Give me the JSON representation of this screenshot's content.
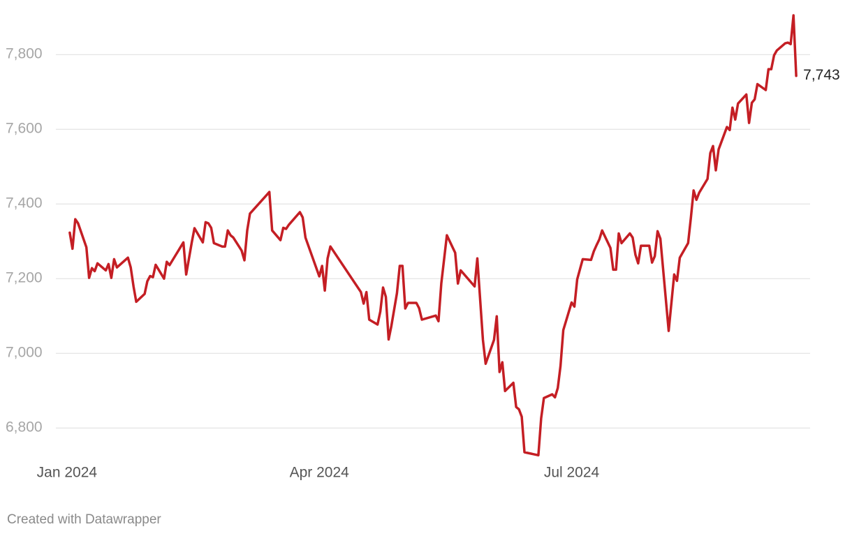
{
  "chart_data": {
    "type": "line",
    "x": [
      1,
      2,
      3,
      4,
      7,
      8,
      9,
      10,
      11,
      14,
      15,
      16,
      17,
      18,
      22,
      23,
      24,
      25,
      28,
      29,
      30,
      31,
      32,
      35,
      36,
      37,
      42,
      43,
      44,
      45,
      46,
      49,
      50,
      51,
      52,
      53,
      56,
      57,
      58,
      59,
      60,
      63,
      64,
      65,
      66,
      73,
      74,
      77,
      78,
      79,
      80,
      84,
      85,
      86,
      91,
      92,
      93,
      94,
      95,
      106,
      107,
      108,
      109,
      112,
      113,
      114,
      115,
      116,
      117,
      119,
      120,
      121,
      122,
      123,
      126,
      127,
      128,
      133,
      134,
      135,
      137,
      140,
      141,
      142,
      147,
      148,
      150,
      151,
      154,
      155,
      156,
      157,
      158,
      161,
      162,
      163,
      164,
      165,
      170,
      171,
      172,
      175,
      176,
      177,
      178,
      179,
      182,
      183,
      184,
      186,
      189,
      190,
      191,
      192,
      193,
      196,
      197,
      198,
      199,
      200,
      203,
      204,
      205,
      206,
      207,
      210,
      211,
      212,
      213,
      214,
      217,
      219,
      220,
      221,
      224,
      225,
      226,
      227,
      228,
      231,
      232,
      233,
      234,
      235,
      238,
      239,
      240,
      241,
      242,
      245,
      246,
      247,
      248,
      249,
      252,
      253,
      254,
      255,
      256,
      259,
      260,
      261,
      262,
      263
    ],
    "series": [
      {
        "color": "#c41e24",
        "end_label": "7,743",
        "values": [
          7323,
          7280,
          7359,
          7348,
          7284,
          7202,
          7228,
          7220,
          7241,
          7222,
          7239,
          7202,
          7252,
          7230,
          7256,
          7230,
          7179,
          7138,
          7159,
          7193,
          7207,
          7204,
          7237,
          7200,
          7245,
          7236,
          7297,
          7211,
          7254,
          7297,
          7335,
          7297,
          7351,
          7348,
          7336,
          7295,
          7286,
          7286,
          7329,
          7316,
          7310,
          7275,
          7249,
          7329,
          7374,
          7432,
          7329,
          7303,
          7336,
          7333,
          7344,
          7378,
          7364,
          7310,
          7206,
          7234,
          7168,
          7254,
          7286,
          7164,
          7133,
          7164,
          7090,
          7077,
          7112,
          7176,
          7151,
          7037,
          7073,
          7161,
          7234,
          7234,
          7120,
          7135,
          7135,
          7121,
          7090,
          7101,
          7086,
          7187,
          7316,
          7269,
          7187,
          7222,
          7179,
          7254,
          7036,
          6972,
          7036,
          7099,
          6950,
          6976,
          6899,
          6921,
          6856,
          6850,
          6830,
          6735,
          6727,
          6826,
          6880,
          6890,
          6882,
          6907,
          6966,
          7062,
          7136,
          7125,
          7198,
          7252,
          7250,
          7273,
          7290,
          7305,
          7329,
          7282,
          7224,
          7224,
          7321,
          7295,
          7321,
          7310,
          7264,
          7241,
          7288,
          7288,
          7243,
          7260,
          7327,
          7307,
          7060,
          7211,
          7194,
          7256,
          7295,
          7363,
          7436,
          7411,
          7430,
          7467,
          7536,
          7555,
          7490,
          7546,
          7606,
          7598,
          7658,
          7626,
          7669,
          7693,
          7617,
          7671,
          7680,
          7721,
          7705,
          7761,
          7761,
          7798,
          7811,
          7830,
          7832,
          7828,
          7905,
          7743
        ]
      }
    ],
    "xlim": [
      -4,
      268
    ],
    "xticks": [
      {
        "value": 0,
        "label": "Jan 2024"
      },
      {
        "value": 91,
        "label": "Apr 2024"
      },
      {
        "value": 182,
        "label": "Jul 2024"
      }
    ],
    "ylim": [
      6720,
      7920
    ],
    "yticks": [
      {
        "value": 6800,
        "label": "6,800"
      },
      {
        "value": 7000,
        "label": "7,000"
      },
      {
        "value": 7200,
        "label": "7,200"
      },
      {
        "value": 7400,
        "label": "7,400"
      },
      {
        "value": 7600,
        "label": "7,600"
      },
      {
        "value": 7800,
        "label": "7,800"
      }
    ],
    "grid": true
  },
  "footer": "Created with Datawrapper"
}
